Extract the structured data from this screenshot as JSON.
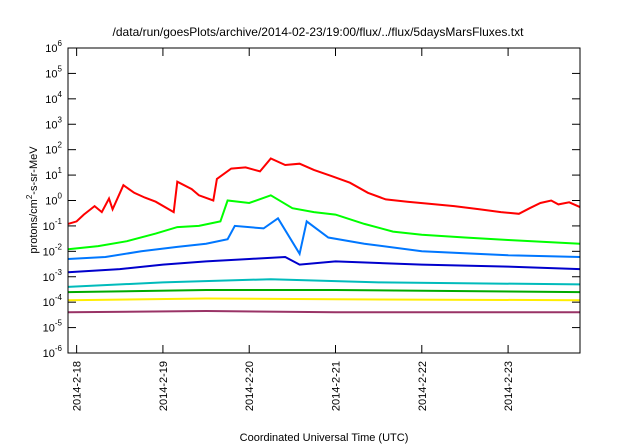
{
  "chart_data": {
    "type": "line",
    "title": "/data/run/goesPlots/archive/2014-02-23/19:00/flux/../flux/5daysMarsFluxes.txt",
    "xlabel": "Coordinated Universal Time (UTC)",
    "ylabel": "protons/cm2-s-sr-MeV",
    "ylabel_parts": {
      "before": "protons/cm",
      "sup": "2",
      "after": "-s-sr-MeV"
    },
    "y_scale": "log",
    "ylim": [
      1e-06,
      1000000.0
    ],
    "xlim": [
      "2014-02-17T21:36",
      "2014-02-23T20:00"
    ],
    "grid": false,
    "legend": "none",
    "x_ticks": [
      {
        "label": "2014-2-18",
        "t": "2014-02-18T00:00"
      },
      {
        "label": "2014-2-19",
        "t": "2014-02-19T00:00"
      },
      {
        "label": "2014-2-20",
        "t": "2014-02-20T00:00"
      },
      {
        "label": "2014-2-21",
        "t": "2014-02-21T00:00"
      },
      {
        "label": "2014-2-22",
        "t": "2014-02-22T00:00"
      },
      {
        "label": "2014-2-23",
        "t": "2014-02-23T00:00"
      }
    ],
    "y_ticks": [
      {
        "base": "10",
        "exp": "-6",
        "v": 1e-06
      },
      {
        "base": "10",
        "exp": "-5",
        "v": 1e-05
      },
      {
        "base": "10",
        "exp": "-4",
        "v": 0.0001
      },
      {
        "base": "10",
        "exp": "-3",
        "v": 0.001
      },
      {
        "base": "10",
        "exp": "-2",
        "v": 0.01
      },
      {
        "base": "10",
        "exp": "-1",
        "v": 0.1
      },
      {
        "base": "10",
        "exp": "0",
        "v": 1
      },
      {
        "base": "10",
        "exp": "1",
        "v": 10
      },
      {
        "base": "10",
        "exp": "2",
        "v": 100
      },
      {
        "base": "10",
        "exp": "3",
        "v": 1000
      },
      {
        "base": "10",
        "exp": "4",
        "v": 10000
      },
      {
        "base": "10",
        "exp": "5",
        "v": 100000
      },
      {
        "base": "10",
        "exp": "6",
        "v": 1000000
      }
    ],
    "series": [
      {
        "color": "#ff0000",
        "points": [
          [
            "2014-02-17T21:36",
            0.12
          ],
          [
            "2014-02-18T00:00",
            0.15
          ],
          [
            "2014-02-18T02:00",
            0.28
          ],
          [
            "2014-02-18T05:00",
            0.6
          ],
          [
            "2014-02-18T07:00",
            0.35
          ],
          [
            "2014-02-18T09:00",
            1.2
          ],
          [
            "2014-02-18T10:00",
            0.45
          ],
          [
            "2014-02-18T13:00",
            4.0
          ],
          [
            "2014-02-18T16:00",
            2.0
          ],
          [
            "2014-02-18T19:00",
            1.3
          ],
          [
            "2014-02-18T22:00",
            0.9
          ],
          [
            "2014-02-19T03:00",
            0.35
          ],
          [
            "2014-02-19T04:00",
            5.5
          ],
          [
            "2014-02-19T08:00",
            2.8
          ],
          [
            "2014-02-19T10:00",
            1.6
          ],
          [
            "2014-02-19T14:00",
            1.0
          ],
          [
            "2014-02-19T15:00",
            7.0
          ],
          [
            "2014-02-19T19:00",
            18.0
          ],
          [
            "2014-02-19T23:00",
            20.0
          ],
          [
            "2014-02-20T03:00",
            14.0
          ],
          [
            "2014-02-20T06:00",
            45.0
          ],
          [
            "2014-02-20T10:00",
            25.0
          ],
          [
            "2014-02-20T14:00",
            28.0
          ],
          [
            "2014-02-20T18:00",
            16.0
          ],
          [
            "2014-02-20T23:00",
            9.0
          ],
          [
            "2014-02-21T04:00",
            5.0
          ],
          [
            "2014-02-21T09:00",
            2.0
          ],
          [
            "2014-02-21T14:00",
            1.1
          ],
          [
            "2014-02-21T20:00",
            0.9
          ],
          [
            "2014-02-22T02:00",
            0.75
          ],
          [
            "2014-02-22T09:00",
            0.6
          ],
          [
            "2014-02-22T16:00",
            0.45
          ],
          [
            "2014-02-22T22:00",
            0.35
          ],
          [
            "2014-02-23T03:00",
            0.3
          ],
          [
            "2014-02-23T06:00",
            0.5
          ],
          [
            "2014-02-23T09:00",
            0.8
          ],
          [
            "2014-02-23T12:00",
            1.0
          ],
          [
            "2014-02-23T14:00",
            0.7
          ],
          [
            "2014-02-23T17:00",
            0.85
          ],
          [
            "2014-02-23T20:00",
            0.55
          ]
        ]
      },
      {
        "color": "#00ff00",
        "points": [
          [
            "2014-02-17T21:36",
            0.012
          ],
          [
            "2014-02-18T06:00",
            0.016
          ],
          [
            "2014-02-18T14:00",
            0.025
          ],
          [
            "2014-02-18T22:00",
            0.05
          ],
          [
            "2014-02-19T04:00",
            0.09
          ],
          [
            "2014-02-19T10:00",
            0.1
          ],
          [
            "2014-02-19T16:00",
            0.15
          ],
          [
            "2014-02-19T18:00",
            1.0
          ],
          [
            "2014-02-20T00:00",
            0.8
          ],
          [
            "2014-02-20T06:00",
            1.6
          ],
          [
            "2014-02-20T12:00",
            0.5
          ],
          [
            "2014-02-20T18:00",
            0.35
          ],
          [
            "2014-02-21T00:00",
            0.28
          ],
          [
            "2014-02-21T08:00",
            0.12
          ],
          [
            "2014-02-21T16:00",
            0.06
          ],
          [
            "2014-02-22T00:00",
            0.045
          ],
          [
            "2014-02-22T12:00",
            0.035
          ],
          [
            "2014-02-23T00:00",
            0.028
          ],
          [
            "2014-02-23T20:00",
            0.02
          ]
        ]
      },
      {
        "color": "#0077ff",
        "points": [
          [
            "2014-02-17T21:36",
            0.005
          ],
          [
            "2014-02-18T08:00",
            0.006
          ],
          [
            "2014-02-18T18:00",
            0.01
          ],
          [
            "2014-02-19T04:00",
            0.015
          ],
          [
            "2014-02-19T12:00",
            0.02
          ],
          [
            "2014-02-19T18:00",
            0.03
          ],
          [
            "2014-02-19T20:00",
            0.1
          ],
          [
            "2014-02-20T04:00",
            0.08
          ],
          [
            "2014-02-20T08:00",
            0.2
          ],
          [
            "2014-02-20T14:00",
            0.008
          ],
          [
            "2014-02-20T16:00",
            0.15
          ],
          [
            "2014-02-20T22:00",
            0.035
          ],
          [
            "2014-02-21T08:00",
            0.02
          ],
          [
            "2014-02-22T00:00",
            0.01
          ],
          [
            "2014-02-23T00:00",
            0.007
          ],
          [
            "2014-02-23T20:00",
            0.006
          ]
        ]
      },
      {
        "color": "#0000cc",
        "points": [
          [
            "2014-02-17T21:36",
            0.0015
          ],
          [
            "2014-02-18T12:00",
            0.002
          ],
          [
            "2014-02-19T00:00",
            0.003
          ],
          [
            "2014-02-19T12:00",
            0.004
          ],
          [
            "2014-02-20T00:00",
            0.005
          ],
          [
            "2014-02-20T10:00",
            0.006
          ],
          [
            "2014-02-20T14:00",
            0.003
          ],
          [
            "2014-02-21T00:00",
            0.004
          ],
          [
            "2014-02-22T00:00",
            0.003
          ],
          [
            "2014-02-23T00:00",
            0.0025
          ],
          [
            "2014-02-23T20:00",
            0.002
          ]
        ]
      },
      {
        "color": "#00bbbb",
        "points": [
          [
            "2014-02-17T21:36",
            0.0004
          ],
          [
            "2014-02-19T00:00",
            0.0006
          ],
          [
            "2014-02-20T06:00",
            0.0008
          ],
          [
            "2014-02-21T12:00",
            0.0006
          ],
          [
            "2014-02-23T20:00",
            0.0005
          ]
        ]
      },
      {
        "color": "#00aa00",
        "points": [
          [
            "2014-02-17T21:36",
            0.00025
          ],
          [
            "2014-02-19T12:00",
            0.0003
          ],
          [
            "2014-02-21T00:00",
            0.0003
          ],
          [
            "2014-02-23T20:00",
            0.00025
          ]
        ]
      },
      {
        "color": "#ffee00",
        "points": [
          [
            "2014-02-17T21:36",
            0.00012
          ],
          [
            "2014-02-19T12:00",
            0.00014
          ],
          [
            "2014-02-21T00:00",
            0.00013
          ],
          [
            "2014-02-23T20:00",
            0.00012
          ]
        ]
      },
      {
        "color": "#993366",
        "points": [
          [
            "2014-02-17T21:36",
            4e-05
          ],
          [
            "2014-02-19T12:00",
            4.5e-05
          ],
          [
            "2014-02-21T00:00",
            4e-05
          ],
          [
            "2014-02-23T20:00",
            4e-05
          ]
        ]
      }
    ]
  }
}
